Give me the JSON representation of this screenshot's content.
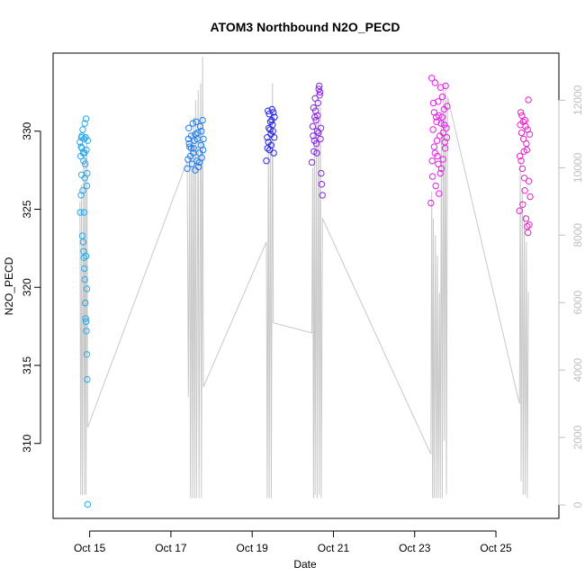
{
  "chart_data": {
    "type": "scatter",
    "title": "ATOM3 Northbound N2O_PECD",
    "xlabel": "Date",
    "ylabel": "N2O_PECD",
    "x_unit": "day of October",
    "xlim": [
      14.1,
      26.55
    ],
    "ylim": [
      305.2,
      335.0
    ],
    "y2lim": [
      -400,
      13400
    ],
    "x_ticks": [
      {
        "value": 15,
        "label": "Oct 15"
      },
      {
        "value": 17,
        "label": "Oct 17"
      },
      {
        "value": 19,
        "label": "Oct 19"
      },
      {
        "value": 21,
        "label": "Oct 21"
      },
      {
        "value": 23,
        "label": "Oct 23"
      },
      {
        "value": 25,
        "label": "Oct 25"
      }
    ],
    "y_ticks": [
      310,
      315,
      320,
      325,
      330
    ],
    "y2_ticks": [
      0,
      2000,
      4000,
      6000,
      8000,
      10000,
      12000
    ],
    "grid": false,
    "legend": "none",
    "secondary_series": {
      "color": "#c8c8c8",
      "points": [
        [
          14.76,
          9000
        ],
        [
          14.78,
          300
        ],
        [
          14.8,
          9500
        ],
        [
          14.82,
          300
        ],
        [
          14.85,
          10500
        ],
        [
          14.87,
          300
        ],
        [
          14.89,
          10300
        ],
        [
          14.91,
          300
        ],
        [
          14.93,
          11000
        ],
        [
          14.95,
          2300
        ],
        [
          17.4,
          10200
        ],
        [
          17.43,
          3200
        ],
        [
          17.46,
          10300
        ],
        [
          17.48,
          200
        ],
        [
          17.51,
          11000
        ],
        [
          17.53,
          200
        ],
        [
          17.56,
          11500
        ],
        [
          17.58,
          200
        ],
        [
          17.61,
          12000
        ],
        [
          17.63,
          200
        ],
        [
          17.67,
          12300
        ],
        [
          17.69,
          200
        ],
        [
          17.73,
          12500
        ],
        [
          17.75,
          200
        ],
        [
          17.78,
          13300
        ],
        [
          17.8,
          3500
        ],
        [
          19.35,
          7800
        ],
        [
          19.37,
          200
        ],
        [
          19.4,
          10800
        ],
        [
          19.42,
          200
        ],
        [
          19.45,
          11500
        ],
        [
          19.47,
          200
        ],
        [
          19.5,
          12500
        ],
        [
          19.52,
          5400
        ],
        [
          20.47,
          5100
        ],
        [
          20.49,
          10000
        ],
        [
          20.51,
          200
        ],
        [
          20.53,
          11000
        ],
        [
          20.55,
          300
        ],
        [
          20.58,
          11500
        ],
        [
          20.6,
          200
        ],
        [
          20.63,
          12000
        ],
        [
          20.65,
          300
        ],
        [
          20.68,
          11800
        ],
        [
          20.7,
          200
        ],
        [
          20.73,
          8500
        ],
        [
          23.4,
          1500
        ],
        [
          23.42,
          9300
        ],
        [
          23.44,
          200
        ],
        [
          23.46,
          8500
        ],
        [
          23.48,
          200
        ],
        [
          23.51,
          8000
        ],
        [
          23.53,
          200
        ],
        [
          23.56,
          7400
        ],
        [
          23.58,
          200
        ],
        [
          23.61,
          6300
        ],
        [
          23.63,
          200
        ],
        [
          23.66,
          11500
        ],
        [
          23.68,
          200
        ],
        [
          23.71,
          12300
        ],
        [
          23.73,
          1900
        ],
        [
          23.76,
          12500
        ],
        [
          23.78,
          300
        ],
        [
          23.81,
          12100
        ],
        [
          25.58,
          3000
        ],
        [
          25.6,
          10200
        ],
        [
          25.62,
          700
        ],
        [
          25.65,
          9400
        ],
        [
          25.67,
          300
        ],
        [
          25.7,
          8600
        ],
        [
          25.72,
          300
        ],
        [
          25.75,
          7800
        ],
        [
          25.77,
          200
        ],
        [
          25.8,
          6300
        ]
      ]
    },
    "series": [
      {
        "color": "#25aaf0",
        "points": [
          [
            14.76,
            329.3
          ],
          [
            14.77,
            324.8
          ],
          [
            14.78,
            328.4
          ],
          [
            14.79,
            325.9
          ],
          [
            14.8,
            327.2
          ],
          [
            14.8,
            329.6
          ],
          [
            14.81,
            328.9
          ],
          [
            14.82,
            323.3
          ],
          [
            14.83,
            326.2
          ],
          [
            14.83,
            330.1
          ],
          [
            14.84,
            322.9
          ],
          [
            14.85,
            322.3
          ],
          [
            14.85,
            328.1
          ],
          [
            14.86,
            321.9
          ],
          [
            14.86,
            329.5
          ],
          [
            14.87,
            321.2
          ],
          [
            14.87,
            328.6
          ],
          [
            14.88,
            320.5
          ],
          [
            14.88,
            330.5
          ],
          [
            14.89,
            319.0
          ],
          [
            14.89,
            327.9
          ],
          [
            14.9,
            318.0
          ],
          [
            14.9,
            329.6
          ],
          [
            14.91,
            317.8
          ],
          [
            14.91,
            330.8
          ],
          [
            14.92,
            317.2
          ],
          [
            14.92,
            328.8
          ],
          [
            14.93,
            315.7
          ],
          [
            14.93,
            319.9
          ],
          [
            14.94,
            314.1
          ],
          [
            14.94,
            327.3
          ],
          [
            14.95,
            306.1
          ],
          [
            14.95,
            329.4
          ],
          [
            14.81,
            329.7
          ],
          [
            14.84,
            328.6
          ],
          [
            14.88,
            327.0
          ],
          [
            14.91,
            322.0
          ],
          [
            14.86,
            324.8
          ],
          [
            14.79,
            329.0
          ],
          [
            14.93,
            326.5
          ]
        ]
      },
      {
        "color": "#1f7ef0",
        "points": [
          [
            17.4,
            327.6
          ],
          [
            17.42,
            328.2
          ],
          [
            17.44,
            330.2
          ],
          [
            17.46,
            329.0
          ],
          [
            17.48,
            328.4
          ],
          [
            17.5,
            329.7
          ],
          [
            17.52,
            327.9
          ],
          [
            17.54,
            330.5
          ],
          [
            17.56,
            328.9
          ],
          [
            17.58,
            329.4
          ],
          [
            17.6,
            327.5
          ],
          [
            17.62,
            330.6
          ],
          [
            17.64,
            328.1
          ],
          [
            17.66,
            329.9
          ],
          [
            17.68,
            327.7
          ],
          [
            17.7,
            328.6
          ],
          [
            17.72,
            330.3
          ],
          [
            17.74,
            329.1
          ],
          [
            17.76,
            328.3
          ],
          [
            17.78,
            330.7
          ],
          [
            17.8,
            329.5
          ],
          [
            17.45,
            329.2
          ],
          [
            17.55,
            328.6
          ],
          [
            17.65,
            329.5
          ],
          [
            17.75,
            330.0
          ],
          [
            17.5,
            328.9
          ],
          [
            17.6,
            329.8
          ],
          [
            17.7,
            328.0
          ],
          [
            17.79,
            328.8
          ],
          [
            17.43,
            329.5
          ]
        ]
      },
      {
        "color": "#2626e8",
        "points": [
          [
            19.35,
            328.1
          ],
          [
            19.37,
            329.6
          ],
          [
            19.39,
            331.3
          ],
          [
            19.41,
            330.2
          ],
          [
            19.43,
            328.8
          ],
          [
            19.45,
            330.6
          ],
          [
            19.47,
            329.1
          ],
          [
            19.49,
            331.4
          ],
          [
            19.51,
            330.0
          ],
          [
            19.53,
            328.6
          ],
          [
            19.55,
            330.9
          ],
          [
            19.38,
            328.9
          ],
          [
            19.42,
            331.1
          ],
          [
            19.46,
            329.8
          ],
          [
            19.5,
            330.4
          ],
          [
            19.54,
            329.6
          ],
          [
            19.4,
            329.3
          ],
          [
            19.48,
            330.7
          ],
          [
            19.52,
            331.2
          ],
          [
            19.44,
            330.1
          ]
        ]
      },
      {
        "color": "#8a24e8",
        "points": [
          [
            20.47,
            328.0
          ],
          [
            20.49,
            330.3
          ],
          [
            20.51,
            331.5
          ],
          [
            20.53,
            329.4
          ],
          [
            20.55,
            332.1
          ],
          [
            20.57,
            330.7
          ],
          [
            20.59,
            328.6
          ],
          [
            20.61,
            331.0
          ],
          [
            20.63,
            329.9
          ],
          [
            20.65,
            332.9
          ],
          [
            20.67,
            332.5
          ],
          [
            20.69,
            330.2
          ],
          [
            20.71,
            326.6
          ],
          [
            20.73,
            325.9
          ],
          [
            20.5,
            329.7
          ],
          [
            20.54,
            330.9
          ],
          [
            20.58,
            329.2
          ],
          [
            20.62,
            331.8
          ],
          [
            20.66,
            332.3
          ],
          [
            20.7,
            327.3
          ],
          [
            20.52,
            328.7
          ],
          [
            20.56,
            331.3
          ],
          [
            20.6,
            330.0
          ],
          [
            20.64,
            332.7
          ],
          [
            20.68,
            329.5
          ]
        ]
      },
      {
        "color": "#e81ee8",
        "points": [
          [
            23.4,
            325.4
          ],
          [
            23.42,
            333.4
          ],
          [
            23.44,
            327.1
          ],
          [
            23.46,
            331.8
          ],
          [
            23.48,
            329.0
          ],
          [
            23.5,
            333.1
          ],
          [
            23.52,
            326.5
          ],
          [
            23.54,
            330.6
          ],
          [
            23.56,
            328.4
          ],
          [
            23.58,
            331.9
          ],
          [
            23.6,
            326.0
          ],
          [
            23.62,
            329.7
          ],
          [
            23.64,
            332.8
          ],
          [
            23.66,
            327.6
          ],
          [
            23.68,
            330.9
          ],
          [
            23.7,
            328.2
          ],
          [
            23.72,
            331.4
          ],
          [
            23.74,
            329.3
          ],
          [
            23.76,
            332.9
          ],
          [
            23.78,
            330.2
          ],
          [
            23.8,
            331.6
          ],
          [
            23.45,
            330.1
          ],
          [
            23.55,
            329.4
          ],
          [
            23.65,
            330.5
          ],
          [
            23.75,
            328.9
          ],
          [
            23.5,
            328.6
          ],
          [
            23.6,
            331.0
          ],
          [
            23.7,
            329.9
          ],
          [
            23.43,
            328.1
          ],
          [
            23.53,
            330.9
          ],
          [
            23.63,
            327.3
          ],
          [
            23.73,
            330.4
          ],
          [
            23.48,
            331.2
          ],
          [
            23.58,
            327.9
          ],
          [
            23.68,
            332.2
          ],
          [
            23.79,
            329.6
          ]
        ]
      },
      {
        "color": "#e624c8",
        "points": [
          [
            25.58,
            324.9
          ],
          [
            25.6,
            330.4
          ],
          [
            25.62,
            328.1
          ],
          [
            25.64,
            331.0
          ],
          [
            25.66,
            325.3
          ],
          [
            25.68,
            329.5
          ],
          [
            25.7,
            327.0
          ],
          [
            25.72,
            330.7
          ],
          [
            25.74,
            324.4
          ],
          [
            25.76,
            328.8
          ],
          [
            25.78,
            330.1
          ],
          [
            25.8,
            332.0
          ],
          [
            25.82,
            324.0
          ],
          [
            25.84,
            325.8
          ],
          [
            25.59,
            328.4
          ],
          [
            25.63,
            329.9
          ],
          [
            25.67,
            330.6
          ],
          [
            25.71,
            326.2
          ],
          [
            25.75,
            329.2
          ],
          [
            25.79,
            323.5
          ],
          [
            25.83,
            329.8
          ],
          [
            25.61,
            331.2
          ],
          [
            25.65,
            327.6
          ],
          [
            25.69,
            328.7
          ],
          [
            25.73,
            330.3
          ],
          [
            25.77,
            323.9
          ],
          [
            25.81,
            326.8
          ]
        ]
      }
    ]
  }
}
